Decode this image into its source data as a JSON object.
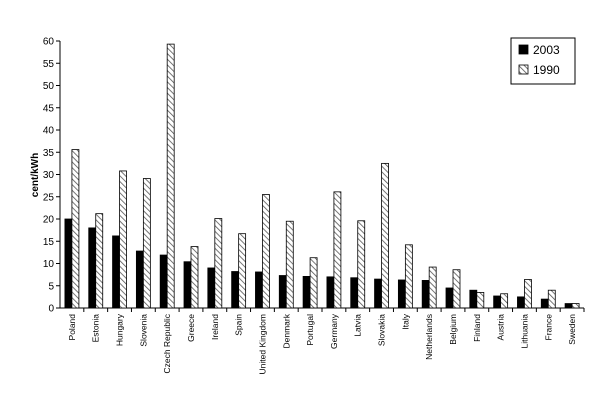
{
  "chart_data": {
    "type": "bar",
    "title": "",
    "xlabel": "",
    "ylabel": "cent/kWh",
    "ylim": [
      0,
      60
    ],
    "yticks": [
      0,
      5,
      10,
      15,
      20,
      25,
      30,
      35,
      40,
      45,
      50,
      55,
      60
    ],
    "grid": false,
    "legend_position": "top-right",
    "categories": [
      "Poland",
      "Estonia",
      "Hungary",
      "Slovenia",
      "Czech Republic",
      "Greece",
      "Ireland",
      "Spain",
      "United Kingdom",
      "Denmark",
      "Portugal",
      "Germany",
      "Latvia",
      "Slovakia",
      "Italy",
      "Netherlands",
      "Belgium",
      "Finland",
      "Austria",
      "Lithuania",
      "France",
      "Sweden"
    ],
    "series": [
      {
        "name": "2003",
        "color": "#000000",
        "pattern": "solid",
        "values": [
          20.0,
          18.0,
          16.2,
          12.8,
          11.9,
          10.4,
          9.0,
          8.2,
          8.1,
          7.3,
          7.1,
          7.0,
          6.8,
          6.5,
          6.3,
          6.2,
          4.5,
          4.0,
          2.7,
          2.5,
          2.0,
          1.0
        ]
      },
      {
        "name": "1990",
        "color": "#ffffff",
        "pattern": "diagonal-hatch",
        "values": [
          35.6,
          21.2,
          30.8,
          29.1,
          59.3,
          13.8,
          20.1,
          16.7,
          25.5,
          19.5,
          11.3,
          26.1,
          19.6,
          32.5,
          14.2,
          9.2,
          8.6,
          3.5,
          3.2,
          6.4,
          4.0,
          1.0
        ]
      }
    ]
  }
}
